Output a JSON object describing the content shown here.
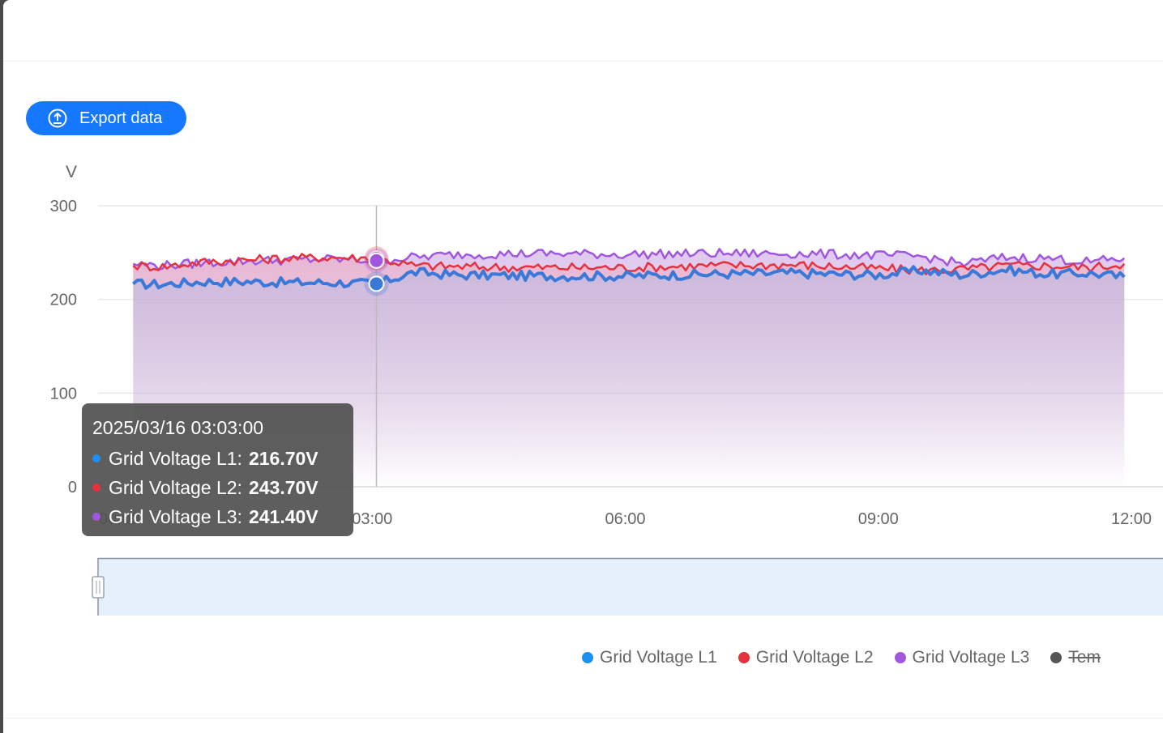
{
  "toolbar": {
    "export_label": "Export data",
    "export_icon": "upload-icon"
  },
  "colors": {
    "l1": "#1b8ff2",
    "l1_line": "#3b79d8",
    "l2": "#e5323e",
    "l3": "#a157dd",
    "temp": "#555555",
    "accent": "#1677ff"
  },
  "chart_data": {
    "type": "area",
    "ylabel": "V",
    "ylim": [
      0,
      300
    ],
    "yticks": [
      "0",
      "100",
      "200",
      "300"
    ],
    "xlim": [
      "00:00",
      "12:00"
    ],
    "xticks": [
      "00:00",
      "03:00",
      "06:00",
      "09:00",
      "12:00"
    ],
    "grid": true,
    "legend_position": "bottom-right",
    "series": [
      {
        "name": "Grid Voltage L1",
        "color": "#1b8ff2",
        "x": [
          "00:10",
          "00:30",
          "01:00",
          "01:30",
          "02:00",
          "02:30",
          "03:03",
          "03:30",
          "04:00",
          "05:00",
          "06:00",
          "07:00",
          "08:00",
          "09:00",
          "09:30",
          "10:00",
          "10:30",
          "11:00",
          "11:30",
          "11:55"
        ],
        "values": [
          216.7,
          216,
          219,
          219,
          218,
          218,
          216.7,
          229,
          226,
          225,
          225,
          227,
          228,
          226,
          231,
          226,
          232,
          227,
          228,
          224
        ]
      },
      {
        "name": "Grid Voltage L2",
        "color": "#e5323e",
        "x": [
          "00:10",
          "00:30",
          "01:00",
          "01:30",
          "02:00",
          "02:30",
          "03:03",
          "03:30",
          "04:00",
          "05:00",
          "06:00",
          "07:00",
          "08:00",
          "09:00",
          "09:30",
          "10:00",
          "10:30",
          "11:00",
          "11:30",
          "11:55"
        ],
        "values": [
          236,
          235,
          240,
          242,
          244,
          245,
          243.7,
          236,
          235,
          234,
          234,
          236,
          237,
          233,
          231,
          232,
          236,
          236,
          234,
          238
        ]
      },
      {
        "name": "Grid Voltage L3",
        "color": "#a157dd",
        "x": [
          "00:10",
          "00:30",
          "01:00",
          "01:30",
          "02:00",
          "02:30",
          "03:03",
          "03:30",
          "04:00",
          "05:00",
          "06:00",
          "07:00",
          "08:00",
          "09:00",
          "09:30",
          "10:00",
          "10:30",
          "11:00",
          "11:30",
          "11:55"
        ],
        "values": [
          238,
          236,
          239,
          241,
          242,
          243,
          241.4,
          245,
          248,
          249,
          248,
          249,
          249,
          247,
          246,
          238,
          245,
          244,
          240,
          244
        ]
      }
    ],
    "legend": [
      {
        "name": "Grid Voltage L1",
        "color": "#1b8ff2",
        "visible": true
      },
      {
        "name": "Grid Voltage L2",
        "color": "#e5323e",
        "visible": true
      },
      {
        "name": "Grid Voltage L3",
        "color": "#a157dd",
        "visible": true
      },
      {
        "name": "Tem",
        "color": "#555555",
        "visible": false
      }
    ],
    "tooltip": {
      "title": "2025/03/16 03:03:00",
      "rows": [
        {
          "label": "Grid Voltage L1:",
          "value": "216.70V",
          "color": "#1b8ff2"
        },
        {
          "label": "Grid Voltage L2:",
          "value": "243.70V",
          "color": "#e5323e"
        },
        {
          "label": "Grid Voltage L3:",
          "value": "241.40V",
          "color": "#a157dd"
        }
      ]
    },
    "crosshair_x": "03:03"
  }
}
